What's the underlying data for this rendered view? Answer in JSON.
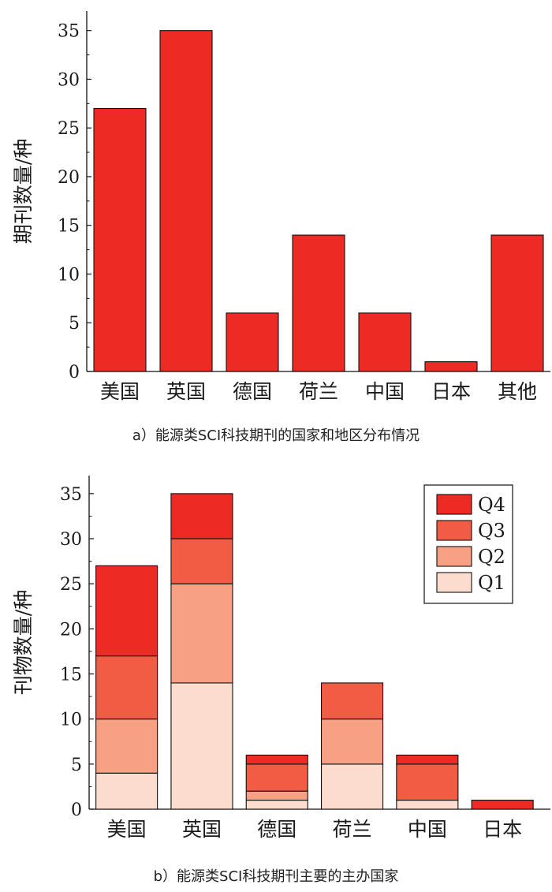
{
  "chart_data": [
    {
      "type": "bar",
      "caption": "a）能源类SCI科技期刊的国家和地区分布情况",
      "ylabel": "期刊数量/种",
      "xlabel": "",
      "categories": [
        "美国",
        "英国",
        "德国",
        "荷兰",
        "中国",
        "日本",
        "其他"
      ],
      "values": [
        27,
        35,
        6,
        14,
        6,
        1,
        14
      ],
      "ylim": [
        0,
        37
      ],
      "yticks": [
        0,
        5,
        10,
        15,
        20,
        25,
        30,
        35
      ],
      "color": "#ee2a24",
      "grid": false
    },
    {
      "type": "bar",
      "stacked": true,
      "caption": "b）能源类SCI科技期刊主要的主办国家",
      "ylabel": "刊物数量/种",
      "xlabel": "",
      "categories": [
        "美国",
        "英国",
        "德国",
        "荷兰",
        "中国",
        "日本"
      ],
      "series": [
        {
          "name": "Q1",
          "values": [
            4,
            14,
            1,
            5,
            1,
            0
          ],
          "color": "#fcdccf"
        },
        {
          "name": "Q2",
          "values": [
            6,
            11,
            1,
            5,
            0,
            0
          ],
          "color": "#f7a084"
        },
        {
          "name": "Q3",
          "values": [
            7,
            5,
            3,
            4,
            4,
            0
          ],
          "color": "#f05d44"
        },
        {
          "name": "Q4",
          "values": [
            10,
            5,
            1,
            0,
            1,
            1
          ],
          "color": "#ee2a24"
        }
      ],
      "legend": [
        "Q4",
        "Q3",
        "Q2",
        "Q1"
      ],
      "legend_position": "top-right",
      "ylim": [
        0,
        37
      ],
      "yticks": [
        0,
        5,
        10,
        15,
        20,
        25,
        30,
        35
      ],
      "grid": false
    }
  ]
}
